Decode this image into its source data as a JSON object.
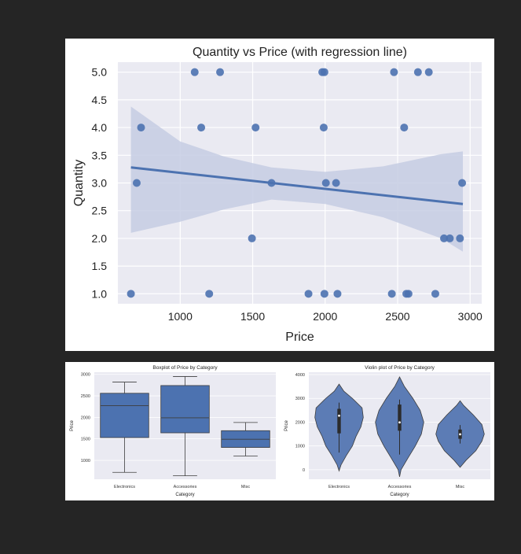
{
  "chart_data": [
    {
      "type": "scatter",
      "title": "Quantity vs Price (with regression line)",
      "xlabel": "Price",
      "ylabel": "Quantity",
      "xlim": [
        570,
        3080
      ],
      "ylim": [
        0.82,
        5.18
      ],
      "xticks": [
        1000,
        1500,
        2000,
        2500,
        3000
      ],
      "yticks": [
        1.0,
        1.5,
        2.0,
        2.5,
        3.0,
        3.5,
        4.0,
        4.5,
        5.0
      ],
      "grid": true,
      "points": [
        {
          "x": 1100,
          "y": 5
        },
        {
          "x": 1275,
          "y": 5
        },
        {
          "x": 1980,
          "y": 5
        },
        {
          "x": 1995,
          "y": 5
        },
        {
          "x": 2475,
          "y": 5
        },
        {
          "x": 2640,
          "y": 5
        },
        {
          "x": 2715,
          "y": 5
        },
        {
          "x": 730,
          "y": 4
        },
        {
          "x": 1145,
          "y": 4
        },
        {
          "x": 1520,
          "y": 4
        },
        {
          "x": 1990,
          "y": 4
        },
        {
          "x": 2545,
          "y": 4
        },
        {
          "x": 700,
          "y": 3
        },
        {
          "x": 1630,
          "y": 3
        },
        {
          "x": 2005,
          "y": 3
        },
        {
          "x": 2075,
          "y": 3
        },
        {
          "x": 2945,
          "y": 3
        },
        {
          "x": 1495,
          "y": 2
        },
        {
          "x": 2820,
          "y": 2
        },
        {
          "x": 2860,
          "y": 2
        },
        {
          "x": 2930,
          "y": 2
        },
        {
          "x": 660,
          "y": 1
        },
        {
          "x": 1200,
          "y": 1
        },
        {
          "x": 1885,
          "y": 1
        },
        {
          "x": 1995,
          "y": 1
        },
        {
          "x": 2085,
          "y": 1
        },
        {
          "x": 2460,
          "y": 1
        },
        {
          "x": 2560,
          "y": 1
        },
        {
          "x": 2575,
          "y": 1
        },
        {
          "x": 2760,
          "y": 1
        }
      ],
      "regression": {
        "x": [
          660,
          2950
        ],
        "y": [
          3.28,
          2.62
        ]
      },
      "confidence_band": {
        "x": [
          660,
          1000,
          1300,
          1630,
          2000,
          2400,
          2800,
          2950
        ],
        "upper": [
          4.38,
          3.75,
          3.48,
          3.28,
          3.2,
          3.3,
          3.52,
          3.57
        ],
        "lower": [
          2.1,
          2.3,
          2.52,
          2.7,
          2.62,
          2.38,
          2.0,
          1.76
        ]
      },
      "colors": {
        "point": "#4c72b0",
        "line": "#4c72b0",
        "band": "#c5cde3",
        "plot_bg": "#eaeaf2",
        "grid": "#ffffff"
      }
    },
    {
      "type": "box",
      "title": "Boxplot of Price by Category",
      "xlabel": "Category",
      "ylabel": "Price",
      "categories": [
        "Electronics",
        "Accessories",
        "Misc"
      ],
      "ylim": [
        560,
        3050
      ],
      "yticks": [
        1000,
        1500,
        2000,
        2500,
        3000
      ],
      "boxes": [
        {
          "min": 720,
          "q1": 1530,
          "median": 2270,
          "q3": 2560,
          "max": 2820
        },
        {
          "min": 640,
          "q1": 1640,
          "median": 1990,
          "q3": 2740,
          "max": 2950
        },
        {
          "min": 1100,
          "q1": 1300,
          "median": 1490,
          "q3": 1690,
          "max": 1880
        }
      ],
      "colors": {
        "box": "#4c72b0",
        "plot_bg": "#eaeaf2"
      }
    },
    {
      "type": "violin",
      "title": "Violin plot of Price by Category",
      "xlabel": "Category",
      "ylabel": "Price",
      "categories": [
        "Electronics",
        "Accessories",
        "Misc"
      ],
      "ylim": [
        -400,
        4100
      ],
      "yticks": [
        0,
        1000,
        2000,
        3000,
        4000
      ],
      "violins": [
        {
          "y": [
            -50,
            200,
            600,
            1000,
            1400,
            1800,
            2200,
            2600,
            3000,
            3300,
            3600
          ],
          "w": [
            0,
            0.08,
            0.3,
            0.55,
            0.7,
            0.9,
            1.0,
            0.95,
            0.55,
            0.2,
            0
          ],
          "box": {
            "q1": 1530,
            "median": 2270,
            "q3": 2560,
            "min": 720,
            "max": 2820
          }
        },
        {
          "y": [
            -300,
            0,
            500,
            1000,
            1500,
            2000,
            2500,
            3000,
            3500,
            3900
          ],
          "w": [
            0,
            0.06,
            0.35,
            0.65,
            0.9,
            1.0,
            0.85,
            0.55,
            0.2,
            0
          ],
          "box": {
            "q1": 1640,
            "median": 1990,
            "q3": 2740,
            "min": 640,
            "max": 2950
          }
        },
        {
          "y": [
            100,
            400,
            800,
            1200,
            1500,
            1900,
            2300,
            2700,
            2900
          ],
          "w": [
            0,
            0.25,
            0.65,
            0.9,
            1.0,
            0.9,
            0.55,
            0.15,
            0
          ],
          "box": {
            "q1": 1300,
            "median": 1490,
            "q3": 1690,
            "min": 1100,
            "max": 1880
          }
        }
      ],
      "colors": {
        "violin": "#5c7cb5",
        "plot_bg": "#eaeaf2"
      }
    }
  ]
}
